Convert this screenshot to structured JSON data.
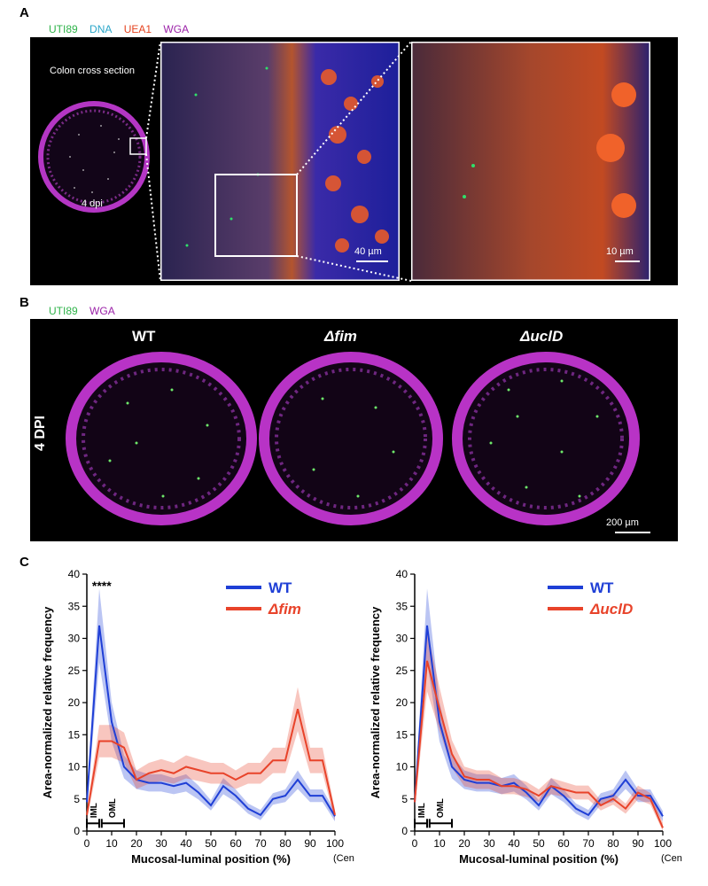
{
  "panel_a": {
    "letter": "A",
    "legend": [
      {
        "label": "UTI89",
        "color": "#2fb34a"
      },
      {
        "label": "DNA",
        "color": "#2aa6c9"
      },
      {
        "label": "UEA1",
        "color": "#e5431f"
      },
      {
        "label": "WGA",
        "color": "#9b22a8"
      }
    ],
    "section_title": "Colon cross section",
    "time_label": "4 dpi",
    "scale_mid": "40 µm",
    "scale_right": "10 µm"
  },
  "panel_b": {
    "letter": "B",
    "legend": [
      {
        "label": "UTI89",
        "color": "#2fb34a"
      },
      {
        "label": "WGA",
        "color": "#9b22a8"
      }
    ],
    "row_label": "4 DPI",
    "genotypes": [
      "WT",
      "Δfim",
      "ΔuclD"
    ],
    "scale": "200 µm"
  },
  "panel_c": {
    "letter": "C",
    "colors": {
      "wt": "#1f3fd6",
      "mut": "#e8432a"
    }
  },
  "chart_data": [
    {
      "type": "line",
      "title": "",
      "xlabel": "Mucosal-luminal position (%)",
      "ylabel": "Area-normalized relative frequency",
      "x_end_note": "(Center)",
      "xlim": [
        0,
        100
      ],
      "ylim": [
        0,
        40
      ],
      "xticks": [
        0,
        10,
        20,
        30,
        40,
        50,
        60,
        70,
        80,
        90,
        100
      ],
      "yticks": [
        0,
        5,
        10,
        15,
        20,
        25,
        30,
        35,
        40
      ],
      "significance": "****",
      "layer_labels": [
        "IML",
        "OML"
      ],
      "x": [
        0,
        5,
        10,
        15,
        20,
        25,
        30,
        35,
        40,
        45,
        50,
        55,
        60,
        65,
        70,
        75,
        80,
        85,
        90,
        95,
        100
      ],
      "series": [
        {
          "name": "WT",
          "values": [
            4.5,
            32,
            17,
            10,
            8,
            7.5,
            7.5,
            7,
            7.5,
            6,
            4,
            7,
            5.5,
            3.5,
            2.5,
            5,
            5.5,
            8,
            5.5,
            5.5,
            2.3
          ]
        },
        {
          "name": "Δfim",
          "values": [
            2.5,
            14,
            14,
            13,
            8,
            9,
            9.5,
            9,
            10,
            9.5,
            9,
            9,
            8,
            9,
            9,
            11,
            11,
            19,
            11,
            11,
            2.5
          ]
        }
      ],
      "legend": [
        "WT",
        "Δfim"
      ]
    },
    {
      "type": "line",
      "title": "",
      "xlabel": "Mucosal-luminal position (%)",
      "ylabel": "Area-normalized  relative frequency",
      "x_end_note": "(Center)",
      "xlim": [
        0,
        100
      ],
      "ylim": [
        0,
        40
      ],
      "xticks": [
        0,
        10,
        20,
        30,
        40,
        50,
        60,
        70,
        80,
        90,
        100
      ],
      "yticks": [
        0,
        5,
        10,
        15,
        20,
        25,
        30,
        35,
        40
      ],
      "layer_labels": [
        "IML",
        "OML"
      ],
      "x": [
        0,
        5,
        10,
        15,
        20,
        25,
        30,
        35,
        40,
        45,
        50,
        55,
        60,
        65,
        70,
        75,
        80,
        85,
        90,
        95,
        100
      ],
      "series": [
        {
          "name": "WT",
          "values": [
            4.5,
            32,
            17,
            10,
            8,
            7.5,
            7.5,
            7,
            7.5,
            6,
            4,
            7,
            5.5,
            3.5,
            2.5,
            5,
            5.5,
            8,
            5.5,
            5.5,
            2.3
          ]
        },
        {
          "name": "ΔuclD",
          "values": [
            4.5,
            26.5,
            19,
            12,
            8.5,
            8,
            8,
            7,
            7,
            6.5,
            5.5,
            7,
            6.5,
            6,
            6,
            4,
            5,
            3.5,
            6,
            5,
            0.5
          ]
        }
      ],
      "legend": [
        "WT",
        "ΔuclD"
      ]
    }
  ]
}
